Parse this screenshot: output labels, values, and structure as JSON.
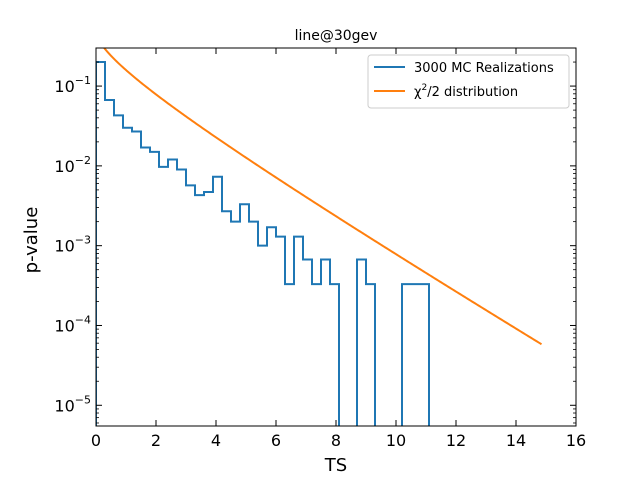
{
  "chart_data": {
    "type": "line",
    "title": "line@30gev",
    "xlabel": "TS",
    "ylabel": "p-value",
    "xlim": [
      0,
      16
    ],
    "ylim": [
      5.5e-06,
      0.3
    ],
    "yscale": "log",
    "x_ticks": [
      0,
      2,
      4,
      6,
      8,
      10,
      12,
      14,
      16
    ],
    "y_ticks": [
      {
        "value": 1e-05,
        "base": "10",
        "exp": "−5"
      },
      {
        "value": 0.0001,
        "base": "10",
        "exp": "−4"
      },
      {
        "value": 0.001,
        "base": "10",
        "exp": "−3"
      },
      {
        "value": 0.01,
        "base": "10",
        "exp": "−2"
      },
      {
        "value": 0.1,
        "base": "10",
        "exp": "−1"
      }
    ],
    "grid": false,
    "legend_position": "top-right",
    "series": [
      {
        "name": "3000 MC Realizations",
        "kind": "step",
        "color": "#1f77b4",
        "bins": [
          {
            "x0": 0.0,
            "x1": 0.3,
            "y": 0.2
          },
          {
            "x0": 0.3,
            "x1": 0.6,
            "y": 0.067
          },
          {
            "x0": 0.6,
            "x1": 0.9,
            "y": 0.043
          },
          {
            "x0": 0.9,
            "x1": 1.2,
            "y": 0.03
          },
          {
            "x0": 1.2,
            "x1": 1.5,
            "y": 0.027
          },
          {
            "x0": 1.5,
            "x1": 1.8,
            "y": 0.017
          },
          {
            "x0": 1.8,
            "x1": 2.1,
            "y": 0.015
          },
          {
            "x0": 2.1,
            "x1": 2.4,
            "y": 0.0097
          },
          {
            "x0": 2.4,
            "x1": 2.7,
            "y": 0.012
          },
          {
            "x0": 2.7,
            "x1": 3.0,
            "y": 0.009
          },
          {
            "x0": 3.0,
            "x1": 3.3,
            "y": 0.0057
          },
          {
            "x0": 3.3,
            "x1": 3.6,
            "y": 0.0043
          },
          {
            "x0": 3.6,
            "x1": 3.9,
            "y": 0.0047
          },
          {
            "x0": 3.9,
            "x1": 4.2,
            "y": 0.0073
          },
          {
            "x0": 4.2,
            "x1": 4.5,
            "y": 0.0027
          },
          {
            "x0": 4.5,
            "x1": 4.8,
            "y": 0.002
          },
          {
            "x0": 4.8,
            "x1": 5.1,
            "y": 0.0033
          },
          {
            "x0": 5.1,
            "x1": 5.4,
            "y": 0.002
          },
          {
            "x0": 5.4,
            "x1": 5.7,
            "y": 0.001
          },
          {
            "x0": 5.7,
            "x1": 6.0,
            "y": 0.0017
          },
          {
            "x0": 6.0,
            "x1": 6.3,
            "y": 0.0013
          },
          {
            "x0": 6.3,
            "x1": 6.6,
            "y": 0.00033
          },
          {
            "x0": 6.6,
            "x1": 6.9,
            "y": 0.0013
          },
          {
            "x0": 6.9,
            "x1": 7.2,
            "y": 0.00067
          },
          {
            "x0": 7.2,
            "x1": 7.5,
            "y": 0.00033
          },
          {
            "x0": 7.5,
            "x1": 7.8,
            "y": 0.00067
          },
          {
            "x0": 7.8,
            "x1": 8.1,
            "y": 0.00033
          },
          {
            "x0": 8.1,
            "x1": 8.4,
            "y": 0
          },
          {
            "x0": 8.4,
            "x1": 8.7,
            "y": 0
          },
          {
            "x0": 8.7,
            "x1": 9.0,
            "y": 0.00067
          },
          {
            "x0": 9.0,
            "x1": 9.3,
            "y": 0.00033
          },
          {
            "x0": 9.3,
            "x1": 9.6,
            "y": 0
          },
          {
            "x0": 9.6,
            "x1": 9.9,
            "y": 0
          },
          {
            "x0": 9.9,
            "x1": 10.2,
            "y": 0
          },
          {
            "x0": 10.2,
            "x1": 10.5,
            "y": 0.00033
          },
          {
            "x0": 10.5,
            "x1": 10.8,
            "y": 0.00033
          },
          {
            "x0": 10.8,
            "x1": 11.1,
            "y": 0.00033
          }
        ]
      },
      {
        "name": "χ²/2 distribution",
        "kind": "curve",
        "color": "#ff7f0e",
        "x_range": [
          0.1,
          14.85
        ]
      }
    ]
  },
  "legend": {
    "entries": [
      {
        "label": "3000 MC Realizations"
      },
      {
        "label_main": "χ",
        "label_sup": "2",
        "label_rest": "/2 distribution"
      }
    ]
  }
}
